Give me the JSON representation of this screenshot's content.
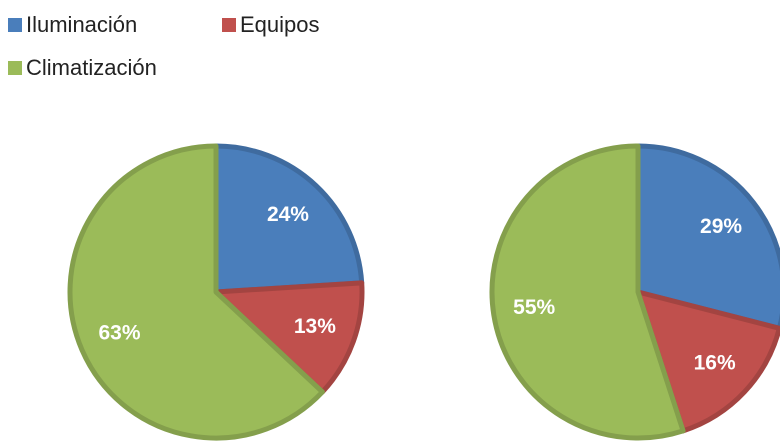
{
  "chart_data": [
    {
      "type": "pie",
      "categories": [
        "Iluminación",
        "Equipos",
        "Climatización"
      ],
      "values": [
        24,
        13,
        63
      ],
      "value_labels": [
        "24%",
        "13%",
        "63%"
      ],
      "colors": [
        "#4a7ebb",
        "#c0504d",
        "#9bbb59"
      ]
    },
    {
      "type": "pie",
      "categories": [
        "Iluminación",
        "Equipos",
        "Climatización"
      ],
      "values": [
        29,
        16,
        55
      ],
      "value_labels": [
        "29%",
        "16%",
        "55%"
      ],
      "colors": [
        "#4a7ebb",
        "#c0504d",
        "#9bbb59"
      ]
    }
  ]
}
